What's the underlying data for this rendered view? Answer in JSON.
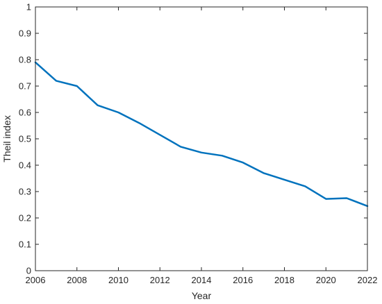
{
  "chart_data": {
    "type": "line",
    "title": "",
    "xlabel": "Year",
    "ylabel": "Theil index",
    "xlim": [
      2006,
      2022
    ],
    "ylim": [
      0,
      1
    ],
    "x_ticks": [
      "2006",
      "2008",
      "2010",
      "2012",
      "2014",
      "2016",
      "2018",
      "2020",
      "2022"
    ],
    "y_ticks": [
      "0",
      "0.1",
      "0.2",
      "0.3",
      "0.4",
      "0.5",
      "0.6",
      "0.7",
      "0.8",
      "0.9",
      "1"
    ],
    "grid": false,
    "legend": "none",
    "series": [
      {
        "color": "#0072bd",
        "x": [
          2006,
          2007,
          2008,
          2009,
          2010,
          2011,
          2012,
          2013,
          2014,
          2015,
          2016,
          2017,
          2018,
          2019,
          2020,
          2021,
          2022
        ],
        "y": [
          0.79,
          0.72,
          0.7,
          0.627,
          0.6,
          0.56,
          0.515,
          0.47,
          0.448,
          0.436,
          0.41,
          0.37,
          0.345,
          0.32,
          0.272,
          0.275,
          0.245
        ]
      }
    ]
  }
}
